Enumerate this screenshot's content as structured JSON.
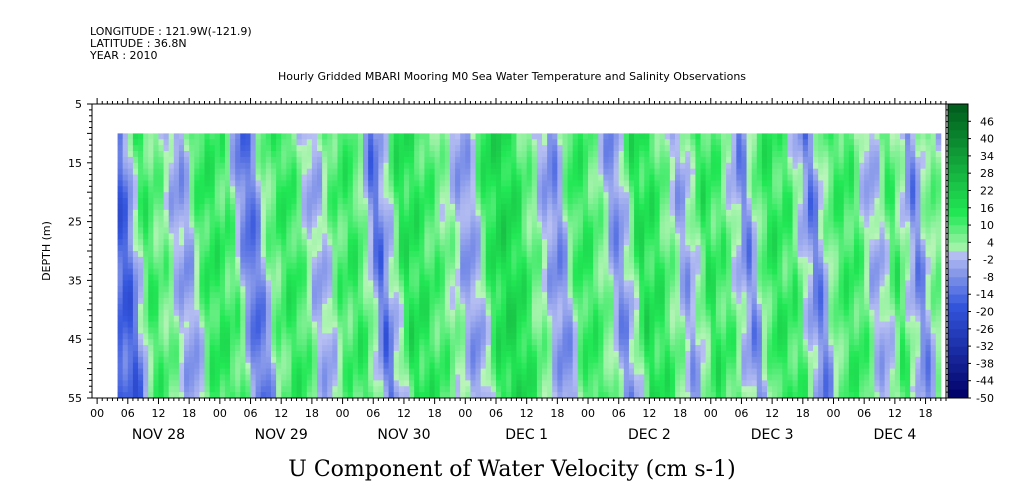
{
  "header": {
    "longitude": "LONGITUDE : 121.9W(-121.9)",
    "latitude": "LATITUDE : 36.8N",
    "year": "YEAR : 2010",
    "title": "Hourly Gridded MBARI Mooring M0 Sea Water Temperature and Salinity Observations"
  },
  "chart_data": {
    "type": "heatmap",
    "title": "Hourly Gridded MBARI Mooring M0 Sea Water Temperature and Salinity Observations",
    "xlabel": "U Component of Water Velocity (cm s-1)",
    "ylabel": "DEPTH (m)",
    "x_hour_ticks": [
      "00",
      "06",
      "12",
      "18",
      "00",
      "06",
      "12",
      "18",
      "00",
      "06",
      "12",
      "18",
      "00",
      "06",
      "12",
      "18",
      "00",
      "06",
      "12",
      "18",
      "00",
      "06",
      "12",
      "18",
      "00",
      "06",
      "12",
      "18"
    ],
    "x_day_labels": [
      "NOV 28",
      "NOV 29",
      "NOV 30",
      "DEC  1",
      "DEC  2",
      "DEC  3",
      "DEC  4"
    ],
    "x_range_hours": [
      -1,
      166
    ],
    "data_start_hour": 4,
    "data_end_hour": 165,
    "y_ticks": [
      "5",
      "15",
      "25",
      "35",
      "45",
      "55"
    ],
    "y_range": [
      5,
      55
    ],
    "y_reversed": true,
    "data_depth_range": [
      10,
      55
    ],
    "colorbar_labels": [
      "46",
      "40",
      "34",
      "28",
      "22",
      "16",
      "10",
      "4",
      "-2",
      "-8",
      "-14",
      "-20",
      "-26",
      "-32",
      "-38",
      "-44",
      "-50"
    ],
    "colorbar_range": [
      -50,
      52
    ],
    "colors": {
      "strong_negative": "#000066",
      "negative": "#3355dd",
      "weak_negative": "#b8c0f2",
      "weak_positive": "#b9f5b9",
      "positive": "#22e855",
      "strong_positive": "#005a1c"
    },
    "mean_velocity_profile": [
      {
        "hour": 4,
        "value": -15
      },
      {
        "hour": 7,
        "value": 12
      },
      {
        "hour": 11,
        "value": 6
      },
      {
        "hour": 15,
        "value": -8
      },
      {
        "hour": 19,
        "value": 14
      },
      {
        "hour": 24,
        "value": 10
      },
      {
        "hour": 28,
        "value": -16
      },
      {
        "hour": 32,
        "value": 8
      },
      {
        "hour": 36,
        "value": 14
      },
      {
        "hour": 41,
        "value": -6
      },
      {
        "hour": 45,
        "value": 10
      },
      {
        "hour": 49,
        "value": 12
      },
      {
        "hour": 53,
        "value": -14
      },
      {
        "hour": 58,
        "value": 16
      },
      {
        "hour": 62,
        "value": 12
      },
      {
        "hour": 66,
        "value": 6
      },
      {
        "hour": 71,
        "value": -8
      },
      {
        "hour": 75,
        "value": 16
      },
      {
        "hour": 79,
        "value": 18
      },
      {
        "hour": 84,
        "value": 4
      },
      {
        "hour": 88,
        "value": -10
      },
      {
        "hour": 92,
        "value": 14
      },
      {
        "hour": 96,
        "value": 8
      },
      {
        "hour": 100,
        "value": -10
      },
      {
        "hour": 104,
        "value": 16
      },
      {
        "hour": 108,
        "value": 12
      },
      {
        "hour": 113,
        "value": -6
      },
      {
        "hour": 117,
        "value": 14
      },
      {
        "hour": 121,
        "value": 8
      },
      {
        "hour": 125,
        "value": -10
      },
      {
        "hour": 129,
        "value": 14
      },
      {
        "hour": 134,
        "value": 10
      },
      {
        "hour": 138,
        "value": -12
      },
      {
        "hour": 142,
        "value": 10
      },
      {
        "hour": 146,
        "value": 12
      },
      {
        "hour": 150,
        "value": -6
      },
      {
        "hour": 154,
        "value": 12
      },
      {
        "hour": 158,
        "value": -10
      },
      {
        "hour": 162,
        "value": 10
      },
      {
        "hour": 165,
        "value": -8
      }
    ]
  }
}
